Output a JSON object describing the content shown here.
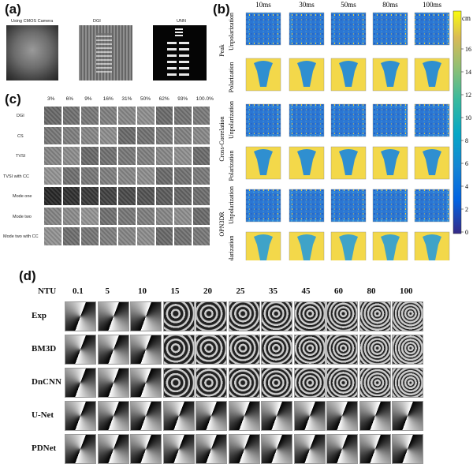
{
  "panel_a": {
    "label": "(a)",
    "titles": [
      "Using CMOS Camera",
      "DGI",
      "UNN"
    ]
  },
  "panel_b": {
    "label": "(b)",
    "columns": [
      "10ms",
      "30ms",
      "50ms",
      "80ms",
      "100ms"
    ],
    "groups": [
      "Peak",
      "Cross-Correlation",
      "OPN3DR"
    ],
    "row_labels": [
      "Unpolarization",
      "Polarization"
    ],
    "colorbar_unit": "cm",
    "colorbar_ticks": [
      "16",
      "14",
      "12",
      "10",
      "8",
      "6",
      "4",
      "2",
      "0"
    ]
  },
  "panel_c": {
    "label": "(c)",
    "columns": [
      "3%",
      "6%",
      "9%",
      "16%",
      "31%",
      "50%",
      "62%",
      "93%",
      "100.0%"
    ],
    "rows": [
      "DGI",
      "CS",
      "TVSI",
      "TVSI with CC",
      "Mode one",
      "Mode two",
      "Mode two with CC"
    ]
  },
  "panel_d": {
    "label": "(d)",
    "header": "NTU",
    "columns": [
      "0.1",
      "5",
      "10",
      "15",
      "20",
      "25",
      "35",
      "45",
      "60",
      "80",
      "100"
    ],
    "rows": [
      "Exp",
      "BM3D",
      "DnCNN",
      "U-Net",
      "PDNet"
    ]
  }
}
